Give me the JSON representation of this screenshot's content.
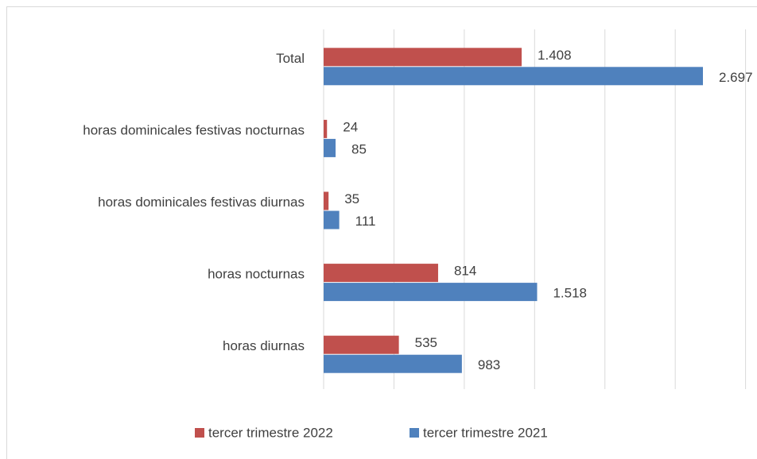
{
  "chart_data": {
    "type": "barh",
    "categories": [
      "Total",
      "horas dominicales festivas nocturnas",
      "horas dominicales festivas diurnas",
      "horas nocturnas",
      "horas diurnas"
    ],
    "series": [
      {
        "name": "tercer trimestre 2022",
        "color": "#c0504d",
        "values": [
          1408,
          24,
          35,
          814,
          535
        ],
        "value_labels": [
          "1.408",
          "24",
          "35",
          "814",
          "535"
        ]
      },
      {
        "name": "tercer trimestre 2021",
        "color": "#4f81bd",
        "values": [
          2697,
          85,
          111,
          1518,
          983
        ],
        "value_labels": [
          "2.697",
          "85",
          "111",
          "1.518",
          "983"
        ]
      }
    ],
    "xlim": [
      0,
      3000
    ],
    "xticks": [
      0,
      500,
      1000,
      1500,
      2000,
      2500,
      3000
    ],
    "grid": true,
    "legend": "bottom"
  }
}
